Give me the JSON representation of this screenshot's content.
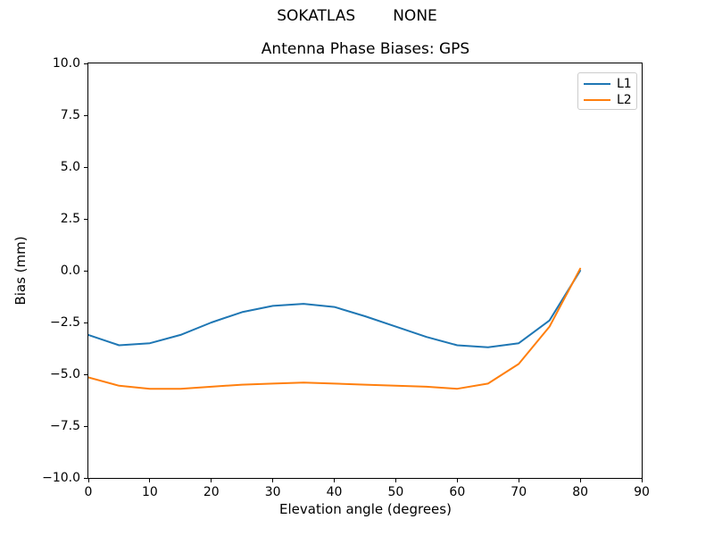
{
  "header": {
    "station": "SOKATLAS",
    "antenna": "NONE"
  },
  "chart_data": {
    "type": "line",
    "title": "Antenna Phase Biases: GPS",
    "xlabel": "Elevation angle (degrees)",
    "ylabel": "Bias (mm)",
    "xlim": [
      0,
      90
    ],
    "ylim": [
      -10,
      10
    ],
    "grid": false,
    "legend_position": "upper right",
    "x_ticks": [
      0,
      10,
      20,
      30,
      40,
      50,
      60,
      70,
      80,
      90
    ],
    "x_tick_labels": [
      "0",
      "10",
      "20",
      "30",
      "40",
      "50",
      "60",
      "70",
      "80",
      "90"
    ],
    "y_ticks": [
      -10,
      -7.5,
      -5,
      -2.5,
      0,
      2.5,
      5,
      7.5,
      10
    ],
    "y_tick_labels": [
      "−10.0",
      "−7.5",
      "−5.0",
      "−2.5",
      "0.0",
      "2.5",
      "5.0",
      "7.5",
      "10.0"
    ],
    "x": [
      0,
      5,
      10,
      15,
      20,
      25,
      30,
      35,
      40,
      45,
      50,
      55,
      60,
      65,
      70,
      75,
      80
    ],
    "series": [
      {
        "name": "L1",
        "color": "#1f77b4",
        "values": [
          -3.1,
          -3.6,
          -3.5,
          -3.1,
          -2.5,
          -2.0,
          -1.7,
          -1.6,
          -1.75,
          -2.2,
          -2.7,
          -3.2,
          -3.6,
          -3.7,
          -3.5,
          -2.4,
          0.0
        ]
      },
      {
        "name": "L2",
        "color": "#ff7f0e",
        "values": [
          -5.15,
          -5.55,
          -5.7,
          -5.7,
          -5.6,
          -5.5,
          -5.45,
          -5.4,
          -5.45,
          -5.5,
          -5.55,
          -5.6,
          -5.7,
          -5.45,
          -4.5,
          -2.7,
          0.1
        ]
      }
    ]
  }
}
